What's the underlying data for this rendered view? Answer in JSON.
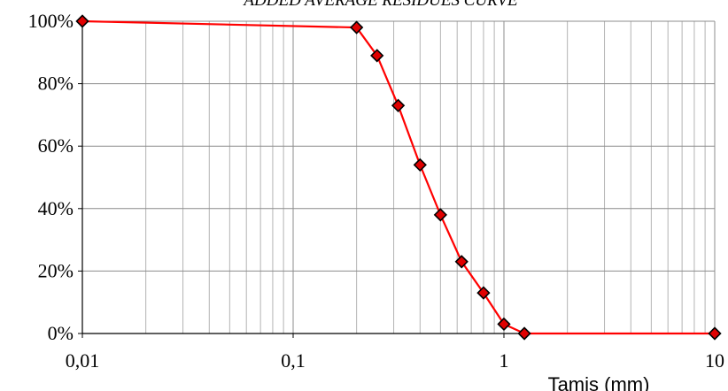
{
  "chart_data": {
    "type": "line",
    "title": "ADDED AVERAGE RESIDUES CURVE",
    "xlabel": "Tamis (mm)",
    "ylabel": "",
    "x_scale": "log",
    "xlim": [
      0.01,
      10
    ],
    "ylim": [
      0,
      100
    ],
    "x_ticks": [
      {
        "value": 0.01,
        "label": "0,01"
      },
      {
        "value": 0.1,
        "label": "0,1"
      },
      {
        "value": 1,
        "label": "1"
      },
      {
        "value": 10,
        "label": "10"
      }
    ],
    "y_ticks": [
      {
        "value": 0,
        "label": "0%"
      },
      {
        "value": 20,
        "label": "20%"
      },
      {
        "value": 40,
        "label": "40%"
      },
      {
        "value": 60,
        "label": "60%"
      },
      {
        "value": 80,
        "label": "80%"
      },
      {
        "value": 100,
        "label": "100%"
      }
    ],
    "grid": true,
    "legend": "none",
    "series": [
      {
        "color": "#ff0000",
        "marker": "diamond",
        "marker_fill": "#e00000",
        "x": [
          0.01,
          0.2,
          0.25,
          0.315,
          0.4,
          0.5,
          0.63,
          0.8,
          1.0,
          1.25,
          10
        ],
        "y": [
          100,
          98,
          89,
          73,
          54,
          38,
          23,
          13,
          3,
          0,
          0
        ]
      }
    ]
  }
}
